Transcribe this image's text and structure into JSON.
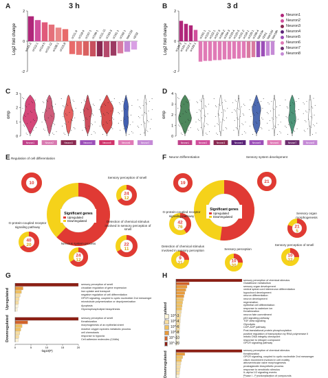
{
  "panels": {
    "a": {
      "label": "A",
      "title": "3 h"
    },
    "b": {
      "label": "B",
      "title": "3 d"
    },
    "c": {
      "label": "C"
    },
    "d": {
      "label": "D"
    },
    "e": {
      "label": "E"
    },
    "f": {
      "label": "F"
    },
    "g": {
      "label": "G"
    },
    "h": {
      "label": "H"
    }
  },
  "legend": {
    "items": [
      {
        "name": "Neuron1",
        "color": "#b0267a"
      },
      {
        "name": "Neuron2",
        "color": "#d04f9c"
      },
      {
        "name": "Neuron3",
        "color": "#8a2a52"
      },
      {
        "name": "Neuron4",
        "color": "#5b2478"
      },
      {
        "name": "Neuron5",
        "color": "#9c4fb8"
      },
      {
        "name": "Neuron6",
        "color": "#e07ab6"
      },
      {
        "name": "Neuron7",
        "color": "#6d2f6f"
      },
      {
        "name": "Neuron8",
        "color": "#c58ad6"
      }
    ]
  },
  "chart_data": [
    {
      "type": "bar",
      "panel": "A",
      "title": "3 h",
      "ylabel": "Log2 fold change",
      "ylim": [
        -2,
        2
      ],
      "yticks": [
        "2",
        "0",
        "-2"
      ],
      "categories": [
        "or131-2",
        "or112-1",
        "or114-5",
        "or115-12",
        "or108-1",
        "or115-8",
        "or111-9",
        "or118-4",
        "or107-1",
        "or106-1",
        "or111-11",
        "or103-3",
        "or101-1",
        "or102-1",
        "taar13d",
        "v2r32"
      ],
      "values": [
        1.65,
        1.4,
        1.25,
        1.1,
        0.9,
        0.8,
        -0.85,
        -0.9,
        -0.95,
        -1.0,
        -1.0,
        -1.05,
        -0.95,
        -0.8,
        -0.7,
        -0.55
      ],
      "colors": [
        "#b0267a",
        "#d04f9c",
        "#e05a7a",
        "#e5707a",
        "#ea8888",
        "#e86a6a",
        "#e86a6a",
        "#e57070",
        "#d96060",
        "#c8505e",
        "#8a2a52",
        "#b54a6c",
        "#9c3a62",
        "#d87aa0",
        "#c58ad6",
        "#d9a0e4"
      ]
    },
    {
      "type": "bar",
      "panel": "B",
      "title": "3 d",
      "ylabel": "Log2 fold change",
      "ylim": [
        -2,
        2
      ],
      "yticks": [
        "2",
        "0",
        "-2"
      ],
      "categories": [
        "or125-2",
        "or131-1",
        "or112-1",
        "or133-1",
        "or101-1",
        "or115-1",
        "or122-1",
        "or107-3",
        "or109-2",
        "or104-3",
        "or133-4",
        "or125-5",
        "or131-2",
        "or118-1",
        "or120-1",
        "or106-4",
        "taar13e",
        "v2rh1",
        "taar13d",
        "taar18h"
      ],
      "values": [
        1.35,
        1.15,
        1.05,
        0.75,
        -1.35,
        -1.3,
        -1.3,
        -1.25,
        -1.25,
        -1.2,
        -1.2,
        -1.15,
        -1.15,
        -1.1,
        -1.1,
        -1.05,
        -1.05,
        -1.0,
        -0.95,
        -0.9
      ],
      "colors": [
        "#b0267a",
        "#b0267a",
        "#b0267a",
        "#d04f9c",
        "#e07ab6",
        "#e07ab6",
        "#e07ab6",
        "#e07ab6",
        "#e07ab6",
        "#e07ab6",
        "#e07ab6",
        "#e07ab6",
        "#e07ab6",
        "#e07ab6",
        "#d87aa0",
        "#d87aa0",
        "#9c4fb8",
        "#9c4fb8",
        "#c58ad6",
        "#c58ad6"
      ]
    },
    {
      "type": "violin",
      "panel": "C",
      "ylabel": "omp",
      "ylim": [
        0,
        3
      ],
      "yticks": [
        "3",
        "2",
        "1",
        "0"
      ],
      "groups": [
        "Neuron1",
        "Neuron2",
        "Neuron3",
        "Neuron4",
        "Neuron5",
        "Neuron6",
        "Neuron7"
      ],
      "widths": [
        0.9,
        0.6,
        0.55,
        0.5,
        0.85,
        0.35,
        0.2
      ],
      "fills": [
        "#d0336a",
        "#c94a6a",
        "#e25050",
        "#c83a4a",
        "#d43a3a",
        "#2f4fa8",
        "#ffffff"
      ],
      "bar_colors": [
        "#c0428a",
        "#d87ab0",
        "#8a2a52",
        "#9c4fb8",
        "#d0336a",
        "#e07ab6",
        "#c58ad6"
      ]
    },
    {
      "type": "violin",
      "panel": "D",
      "ylabel": "omp",
      "ylim": [
        0,
        4
      ],
      "yticks": [
        "4",
        "3",
        "2",
        "1",
        "0"
      ],
      "groups": [
        "Neuron1",
        "Neuron2",
        "Neuron3",
        "Neuron4",
        "Neuron5",
        "Neuron6",
        "Neuron7",
        "Neuron8"
      ],
      "widths": [
        0.85,
        0.25,
        0.3,
        0.2,
        0.6,
        0.2,
        0.5,
        0.2
      ],
      "fills": [
        "#3a7a4a",
        "#ffffff",
        "#ffffff",
        "#ffffff",
        "#3a5aa8",
        "#ffffff",
        "#3a8a6a",
        "#ffffff"
      ],
      "bar_colors": [
        "#c0428a",
        "#d04f9c",
        "#8a2a52",
        "#5b2478",
        "#9c4fb8",
        "#e07ab6",
        "#6d2f6f",
        "#c58ad6"
      ]
    },
    {
      "type": "bar",
      "panel": "G",
      "orientation": "horizontal",
      "xlabel": "-log10(P)",
      "xlim": [
        0,
        20
      ],
      "xticks": [
        "0",
        "5",
        "10",
        "15",
        "20"
      ],
      "groups": [
        {
          "name": "Upregulated",
          "categories": [
            "sensory perception of smell",
            "circadian regulation of gene expression",
            "iron uptake and transport",
            "negative regulation of cell differentiation",
            "GPCR signaling, coupled to cyclic nucleotide 2nd messenger",
            "microtubule polymerization or depolymerization",
            "Apoptosis",
            "Glycerophospholipid biosynthesis"
          ],
          "values": [
            20,
            2.5,
            2.0,
            1.6,
            1.3,
            1.1,
            0.9,
            0.7
          ]
        },
        {
          "name": "Downregulated",
          "categories": [
            "sensory perception of smell",
            "Keratinization",
            "morphogenesis of an epithelial sheet",
            "reactive oxygen species metabolic process",
            "cell chemotaxis",
            "response to hypoxia",
            "Cell adhesion molecules (CAMs)"
          ],
          "values": [
            20,
            4.0,
            2.2,
            1.8,
            1.5,
            1.2,
            1.0
          ]
        }
      ]
    },
    {
      "type": "bar",
      "panel": "H",
      "orientation": "horizontal",
      "xlabel": "-log10(P)",
      "xlim": [
        0,
        30
      ],
      "xticks": [
        "0",
        "10",
        "20",
        "30"
      ],
      "groups": [
        {
          "name": "Upregulated",
          "categories": [
            "sensory perception of chemical stimulus",
            "Glutathione metabolism",
            "sensory organ development",
            "ventral spinal cord interneuron differentiation",
            "hypochord development",
            "neuron differentiation",
            "neuron development",
            "regeneration",
            "epithelial cell differentiation",
            "response to cadmium ion",
            "Keratinization",
            "neuron fate commitment",
            "p53 signaling pathway",
            "TGF-beta signaling",
            "Glycolysis",
            "CDP-ADP pathway",
            "Post-translational protein phosphorylation",
            "positive regulation of transcription by RNA polymerase II",
            "mitotic DNA integrity checkpoint",
            "response to nitrogen compound",
            "GPCR signaling pathway"
          ],
          "values": [
            30,
            6,
            5,
            4.5,
            4,
            3.6,
            3.3,
            3,
            2.8,
            2.6,
            2.4,
            2.2,
            2,
            1.9,
            1.8,
            1.7,
            1.6,
            1.5,
            1.4,
            1.3,
            1.2
          ]
        },
        {
          "name": "Downregulated",
          "categories": [
            "sensory perception of chemical stimulus",
            "Keratinization",
            "GPCR signaling, coupled to cyclic nucleotide 2nd messenger",
            "cilium movement involved in cell motility",
            "atrioventricular valve morphogenesis",
            "prostaglandin biosynthetic process",
            "response to xenobiotic stimulus",
            "IL-alpha 1/2 signaling events",
            "Phase I - Functionalization of compounds",
            "Nonneural tissue development"
          ],
          "values": [
            30,
            4,
            3,
            2.5,
            2.2,
            2.0,
            1.8,
            1.6,
            1.4,
            1.2
          ]
        }
      ]
    }
  ],
  "rings": {
    "e": [
      {
        "title": "Regulation of cell differentiation",
        "up": "10",
        "down": ""
      },
      {
        "title": "Sensory perception of smell",
        "up": "24",
        "down": "12"
      },
      {
        "title": "G-protein-coupled receptor signaling pathway",
        "up": "40",
        "down": "20"
      },
      {
        "title": "Detection of chemical stimulus involved in sensory perception of smell",
        "up": "22",
        "down": "11"
      },
      {
        "title": "Nervous system process",
        "up": "24",
        "down": "12"
      }
    ],
    "f": [
      {
        "title": "Neuron Differentiation",
        "up": "19",
        "down": ""
      },
      {
        "title": "Sensory system development",
        "up": "21",
        "down": ""
      },
      {
        "title": "G-protein-coupled receptor signaling pathway",
        "up": "42",
        "down": "76"
      },
      {
        "title": "Sensory organ morphogenesis",
        "up": "21",
        "down": "5"
      },
      {
        "title": "Detection of chemical stimulus involved in sensory perception",
        "up": "9",
        "down": "31"
      },
      {
        "title": "Sensory perception",
        "up": "10",
        "down": "30"
      },
      {
        "title": "Sensory perception of smell",
        "up": "10",
        "down": "32"
      }
    ],
    "center": {
      "title": "Significant genes",
      "up_label": "Upregulated",
      "down_label": "Downregulated"
    }
  },
  "pvalue_scale": [
    "10^-3",
    "10^-4",
    "10^-6",
    "10^-8",
    "10^-10",
    "10^-20"
  ],
  "colors": {
    "up_red": "#e03a34",
    "down_yellow": "#f5d21a",
    "bar_dark": "#8c1f14"
  }
}
